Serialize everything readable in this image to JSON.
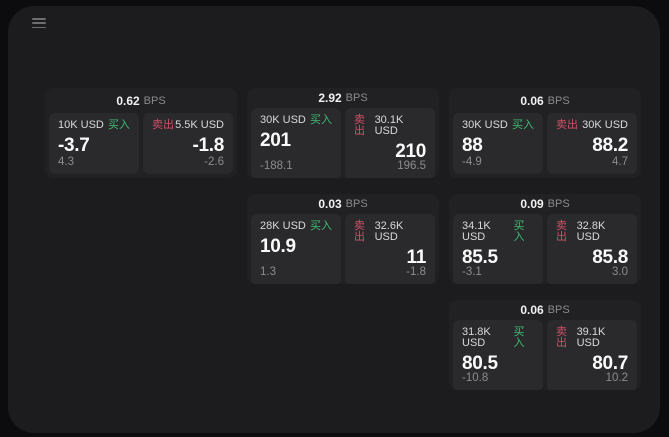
{
  "window": {
    "menu_icon": "menu"
  },
  "labels": {
    "bps_unit": "BPS",
    "buy": "买入",
    "sell": "卖出"
  },
  "colors": {
    "buy": "#3dbd72",
    "sell": "#d04f66",
    "panel": "#1c1c1e",
    "card": "#212124",
    "tile": "#2a2a2d"
  },
  "cards": [
    {
      "row": 1,
      "col": 1,
      "bps": "0.62",
      "buy": {
        "amount": "10K USD",
        "price": "-3.7",
        "change": "4.3"
      },
      "sell": {
        "amount": "5.5K USD",
        "price": "-1.8",
        "change": "-2.6"
      }
    },
    {
      "row": 1,
      "col": 2,
      "bps": "2.92",
      "buy": {
        "amount": "30K USD",
        "price": "201",
        "change": "-188.1"
      },
      "sell": {
        "amount": "30.1K USD",
        "price": "210",
        "change": "196.5"
      }
    },
    {
      "row": 1,
      "col": 3,
      "bps": "0.06",
      "buy": {
        "amount": "30K USD",
        "price": "88",
        "change": "-4.9"
      },
      "sell": {
        "amount": "30K USD",
        "price": "88.2",
        "change": "4.7"
      }
    },
    {
      "row": 2,
      "col": 2,
      "bps": "0.03",
      "buy": {
        "amount": "28K USD",
        "price": "10.9",
        "change": "1.3"
      },
      "sell": {
        "amount": "32.6K USD",
        "price": "11",
        "change": "-1.8"
      }
    },
    {
      "row": 2,
      "col": 3,
      "bps": "0.09",
      "buy": {
        "amount": "34.1K USD",
        "price": "85.5",
        "change": "-3.1"
      },
      "sell": {
        "amount": "32.8K USD",
        "price": "85.8",
        "change": "3.0"
      }
    },
    {
      "row": 3,
      "col": 3,
      "bps": "0.06",
      "buy": {
        "amount": "31.8K USD",
        "price": "80.5",
        "change": "-10.8"
      },
      "sell": {
        "amount": "39.1K USD",
        "price": "80.7",
        "change": "10.2"
      }
    }
  ]
}
